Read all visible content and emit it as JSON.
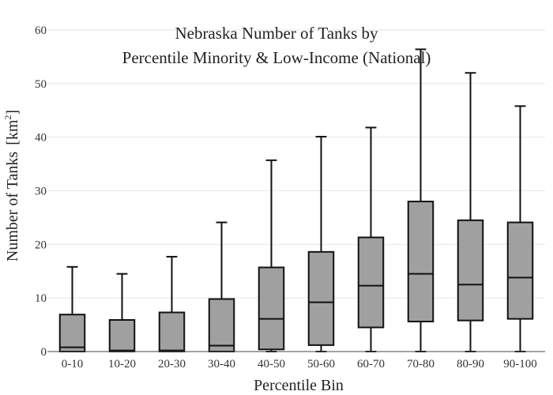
{
  "chart_data": {
    "type": "box",
    "title_lines": [
      "Nebraska Number of Tanks by",
      "Percentile Minority & Low-Income (National)"
    ],
    "xlabel": "Percentile Bin",
    "ylabel": "Number of Tanks",
    "ylabel_unit_base": "[km",
    "ylabel_unit_sup": "2",
    "ylabel_unit_end": "]",
    "ylim": [
      0,
      60
    ],
    "yticks": [
      0,
      10,
      20,
      30,
      40,
      50,
      60
    ],
    "grid": true,
    "categories": [
      "0-10",
      "10-20",
      "20-30",
      "30-40",
      "40-50",
      "50-60",
      "60-70",
      "70-80",
      "80-90",
      "90-100"
    ],
    "boxes": [
      {
        "min": 0,
        "q1": 0,
        "median": 0.8,
        "q3": 6.9,
        "max": 15.8
      },
      {
        "min": 0,
        "q1": 0,
        "median": 0.2,
        "q3": 5.9,
        "max": 14.5
      },
      {
        "min": 0,
        "q1": 0,
        "median": 0.2,
        "q3": 7.3,
        "max": 17.7
      },
      {
        "min": 0,
        "q1": 0,
        "median": 1.1,
        "q3": 9.8,
        "max": 24.1
      },
      {
        "min": 0,
        "q1": 0.4,
        "median": 6.1,
        "q3": 15.7,
        "max": 35.7
      },
      {
        "min": 0,
        "q1": 1.2,
        "median": 9.2,
        "q3": 18.6,
        "max": 40.1
      },
      {
        "min": 0,
        "q1": 4.5,
        "median": 12.3,
        "q3": 21.3,
        "max": 41.8
      },
      {
        "min": 0,
        "q1": 5.6,
        "median": 14.5,
        "q3": 28.0,
        "max": 56.4
      },
      {
        "min": 0,
        "q1": 5.8,
        "median": 12.5,
        "q3": 24.5,
        "max": 52.0
      },
      {
        "min": 0,
        "q1": 6.1,
        "median": 13.8,
        "q3": 24.1,
        "max": 45.8
      }
    ],
    "box_color": "#a0a0a0",
    "line_color": "#111111",
    "grid_color": "#e6e6e6"
  }
}
